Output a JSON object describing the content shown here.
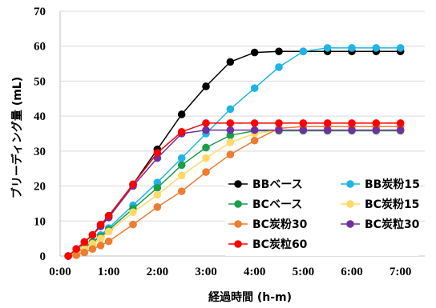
{
  "chart_data": {
    "type": "line",
    "title": "",
    "xlabel": "経過時間 (h-m)",
    "ylabel": "ブリーディング量 (mL)",
    "xlim": [
      0,
      450
    ],
    "ylim": [
      0,
      70
    ],
    "x_ticks": [
      {
        "value": 0,
        "label": "0:00"
      },
      {
        "value": 60,
        "label": "1:00"
      },
      {
        "value": 120,
        "label": "2:00"
      },
      {
        "value": 180,
        "label": "3:00"
      },
      {
        "value": 240,
        "label": "4:00"
      },
      {
        "value": 300,
        "label": "5:00"
      },
      {
        "value": 360,
        "label": "6:00"
      },
      {
        "value": 420,
        "label": "7:00"
      }
    ],
    "y_ticks": [
      {
        "value": 0,
        "label": "0"
      },
      {
        "value": 10,
        "label": "10"
      },
      {
        "value": 20,
        "label": "20"
      },
      {
        "value": 30,
        "label": "30"
      },
      {
        "value": 40,
        "label": "40"
      },
      {
        "value": 50,
        "label": "50"
      },
      {
        "value": 60,
        "label": "60"
      },
      {
        "value": 70,
        "label": "70"
      }
    ],
    "grid": "horizontal",
    "legend_position": "bottom-right",
    "series": [
      {
        "name": "BBベース",
        "color": "#000000",
        "x": [
          10,
          20,
          30,
          40,
          50,
          60,
          90,
          120,
          150,
          180,
          210,
          240,
          270,
          300,
          330,
          360,
          390,
          420
        ],
        "y": [
          0,
          2,
          4,
          6,
          8.5,
          11.5,
          20.5,
          30.5,
          40.5,
          48.5,
          55.5,
          58.2,
          58.5,
          58.5,
          58.5,
          58.5,
          58.5,
          58.5
        ]
      },
      {
        "name": "BB炭粉15",
        "color": "#1fb4e6",
        "x": [
          10,
          20,
          30,
          40,
          50,
          60,
          90,
          120,
          150,
          180,
          210,
          240,
          270,
          300,
          330,
          360,
          390,
          420
        ],
        "y": [
          0,
          1,
          2.5,
          4,
          6,
          8,
          14.5,
          21,
          28,
          35,
          42,
          48,
          54,
          58.5,
          59.5,
          59.5,
          59.5,
          59.5
        ]
      },
      {
        "name": "BCベース",
        "color": "#1a9e4a",
        "x": [
          10,
          20,
          30,
          40,
          50,
          60,
          90,
          120,
          150,
          180,
          210,
          240,
          270,
          300,
          330,
          360,
          390,
          420
        ],
        "y": [
          0,
          1,
          2.5,
          4,
          5.5,
          7.5,
          13.5,
          19.5,
          26,
          31,
          34.5,
          35.8,
          35.8,
          35.8,
          35.8,
          35.8,
          35.8,
          35.8
        ]
      },
      {
        "name": "BC炭粉15",
        "color": "#ffd966",
        "x": [
          10,
          20,
          30,
          40,
          50,
          60,
          90,
          120,
          150,
          180,
          210,
          240,
          270,
          300,
          330,
          360,
          390,
          420
        ],
        "y": [
          0,
          0.8,
          2,
          3.5,
          5,
          7,
          12.5,
          17.5,
          23,
          28,
          32.5,
          35,
          36,
          36,
          36,
          36,
          36,
          36
        ]
      },
      {
        "name": "BC炭粉30",
        "color": "#ed7d31",
        "x": [
          10,
          20,
          30,
          40,
          50,
          60,
          90,
          120,
          150,
          180,
          210,
          240,
          270,
          300,
          330,
          360,
          390,
          420
        ],
        "y": [
          0,
          0.2,
          1,
          2,
          3,
          4.2,
          9,
          14,
          18.5,
          24,
          29,
          33,
          36.5,
          37,
          37,
          37,
          37,
          37
        ]
      },
      {
        "name": "BC炭粒30",
        "color": "#7030a0",
        "x": [
          10,
          20,
          30,
          40,
          50,
          60,
          90,
          120,
          150,
          180,
          210,
          240,
          270,
          300,
          330,
          360,
          390,
          420
        ],
        "y": [
          0,
          2,
          4,
          6,
          8.5,
          11,
          20,
          28,
          35,
          36,
          36,
          36,
          36,
          36,
          36,
          36,
          36,
          36
        ]
      },
      {
        "name": "BC炭粒60",
        "color": "#ff0000",
        "x": [
          10,
          20,
          30,
          40,
          50,
          60,
          90,
          120,
          150,
          180,
          210,
          240,
          270,
          300,
          330,
          360,
          390,
          420
        ],
        "y": [
          0,
          2,
          4,
          6,
          9,
          11.5,
          20.5,
          29.5,
          35.5,
          38,
          38,
          38,
          38,
          38,
          38,
          38,
          38,
          38
        ]
      }
    ],
    "legend_order": [
      "BBベース",
      "BB炭粉15",
      "BCベース",
      "BC炭粉15",
      "BC炭粉30",
      "BC炭粒30",
      "BC炭粒60"
    ]
  }
}
